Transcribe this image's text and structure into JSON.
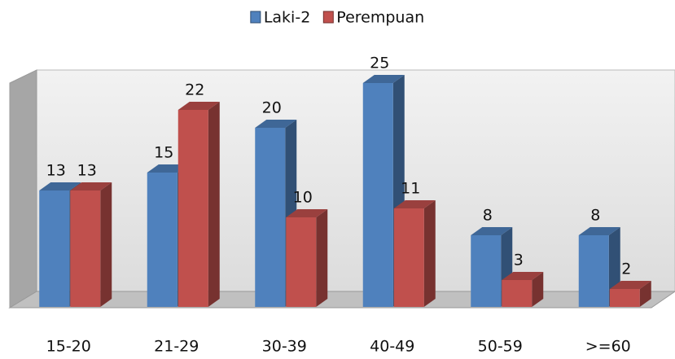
{
  "chart_data": {
    "type": "bar3d",
    "categories": [
      "15-20",
      "21-29",
      "30-39",
      "40-49",
      "50-59",
      ">=60"
    ],
    "series": [
      {
        "name": "Laki-2",
        "color": "#4f81bd",
        "values": [
          13,
          15,
          20,
          25,
          8,
          8
        ]
      },
      {
        "name": "Perempuan",
        "color": "#c0504d",
        "values": [
          13,
          22,
          10,
          11,
          3,
          2
        ]
      }
    ],
    "ylim": [
      0,
      27
    ],
    "legend": "top"
  }
}
